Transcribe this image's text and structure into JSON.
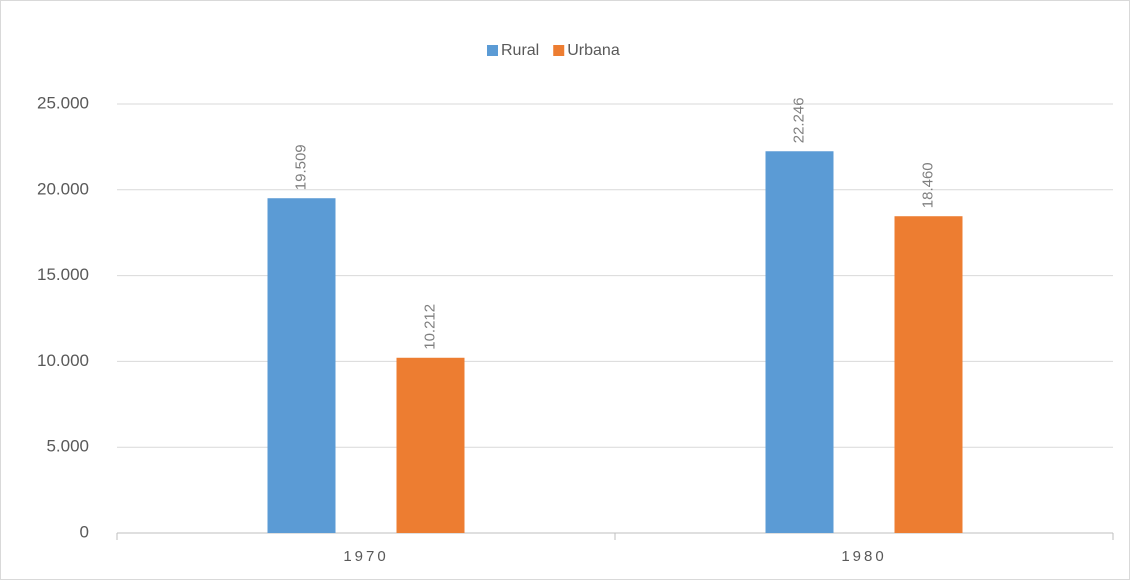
{
  "chart_data": {
    "type": "bar",
    "categories": [
      "1970",
      "1980"
    ],
    "series": [
      {
        "name": "Rural",
        "color": "#5b9bd5",
        "values": [
          19509,
          22246
        ],
        "value_labels": [
          "19.509",
          "22.246"
        ]
      },
      {
        "name": "Urbana",
        "color": "#ed7d31",
        "values": [
          10212,
          18460
        ],
        "value_labels": [
          "10.212",
          "18.460"
        ]
      }
    ],
    "ylim": [
      0,
      25000
    ],
    "yticks": [
      0,
      {
        "value": 5000,
        "label": "5.000"
      },
      {
        "value": 10000,
        "label": "10.000"
      },
      {
        "value": 15000,
        "label": "15.000"
      },
      {
        "value": 20000,
        "label": "20.000"
      },
      {
        "value": 25000,
        "label": "25.000"
      }
    ],
    "grid": true,
    "legend": "top"
  }
}
